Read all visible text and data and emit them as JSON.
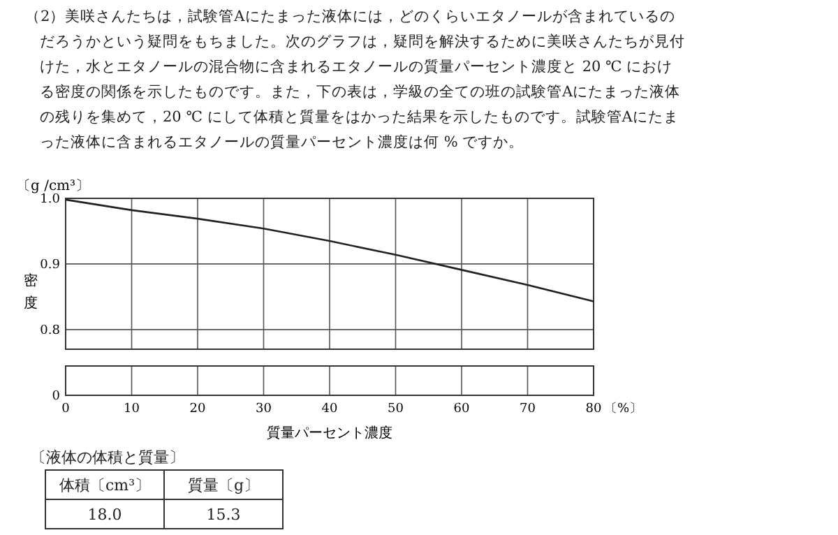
{
  "chart_data": {
    "type": "line",
    "title": "（2）美咲さんたちは，試験管Aにたまった液体には，どのくらいエタノールが含まれているのだろうかという疑問をもちました。次のグラフは，疑問を解決するために美咲さんたちが見付けた，水とエタノールの混合物に含まれるエタノールの質量パーセント濃度と 20 ℃ における密度の関係を示したものです。また，下の表は，学級の全ての班の試験管Aにたまった液体の残りを集めて，20 ℃ にして体積と質量をはかった結果を示したものです。試験管Aにたまった液体に含まれるエタノールの質量パーセント濃度は何 % ですか。",
    "ylabel": "密度",
    "xlabel": "質量パーセント濃度",
    "annotations": [
      "〔g /cm³〕",
      "〔液体の体積と質量〕",
      "体積〔cm³〕",
      "質量〔g〕",
      "18.0",
      "15.3",
      "〔%〕",
      "0"
    ],
    "x": [
      0,
      10,
      20,
      30,
      40,
      50,
      60,
      70,
      80
    ],
    "series": [
      {
        "color": "#222222",
        "values": [
          0.998,
          0.982,
          0.969,
          0.954,
          0.935,
          0.914,
          0.891,
          0.868,
          0.843
        ]
      }
    ],
    "xlim": [
      0,
      80
    ],
    "xticks": [
      0,
      10,
      20,
      30,
      40,
      50,
      60,
      70,
      80
    ],
    "ylim": [
      0.77,
      1.0
    ],
    "yticks": [
      0.8,
      0.9,
      {
        "value": 1.0,
        "label": "1.0"
      }
    ],
    "grid": true,
    "marker": "none",
    "line_style": "solid"
  }
}
